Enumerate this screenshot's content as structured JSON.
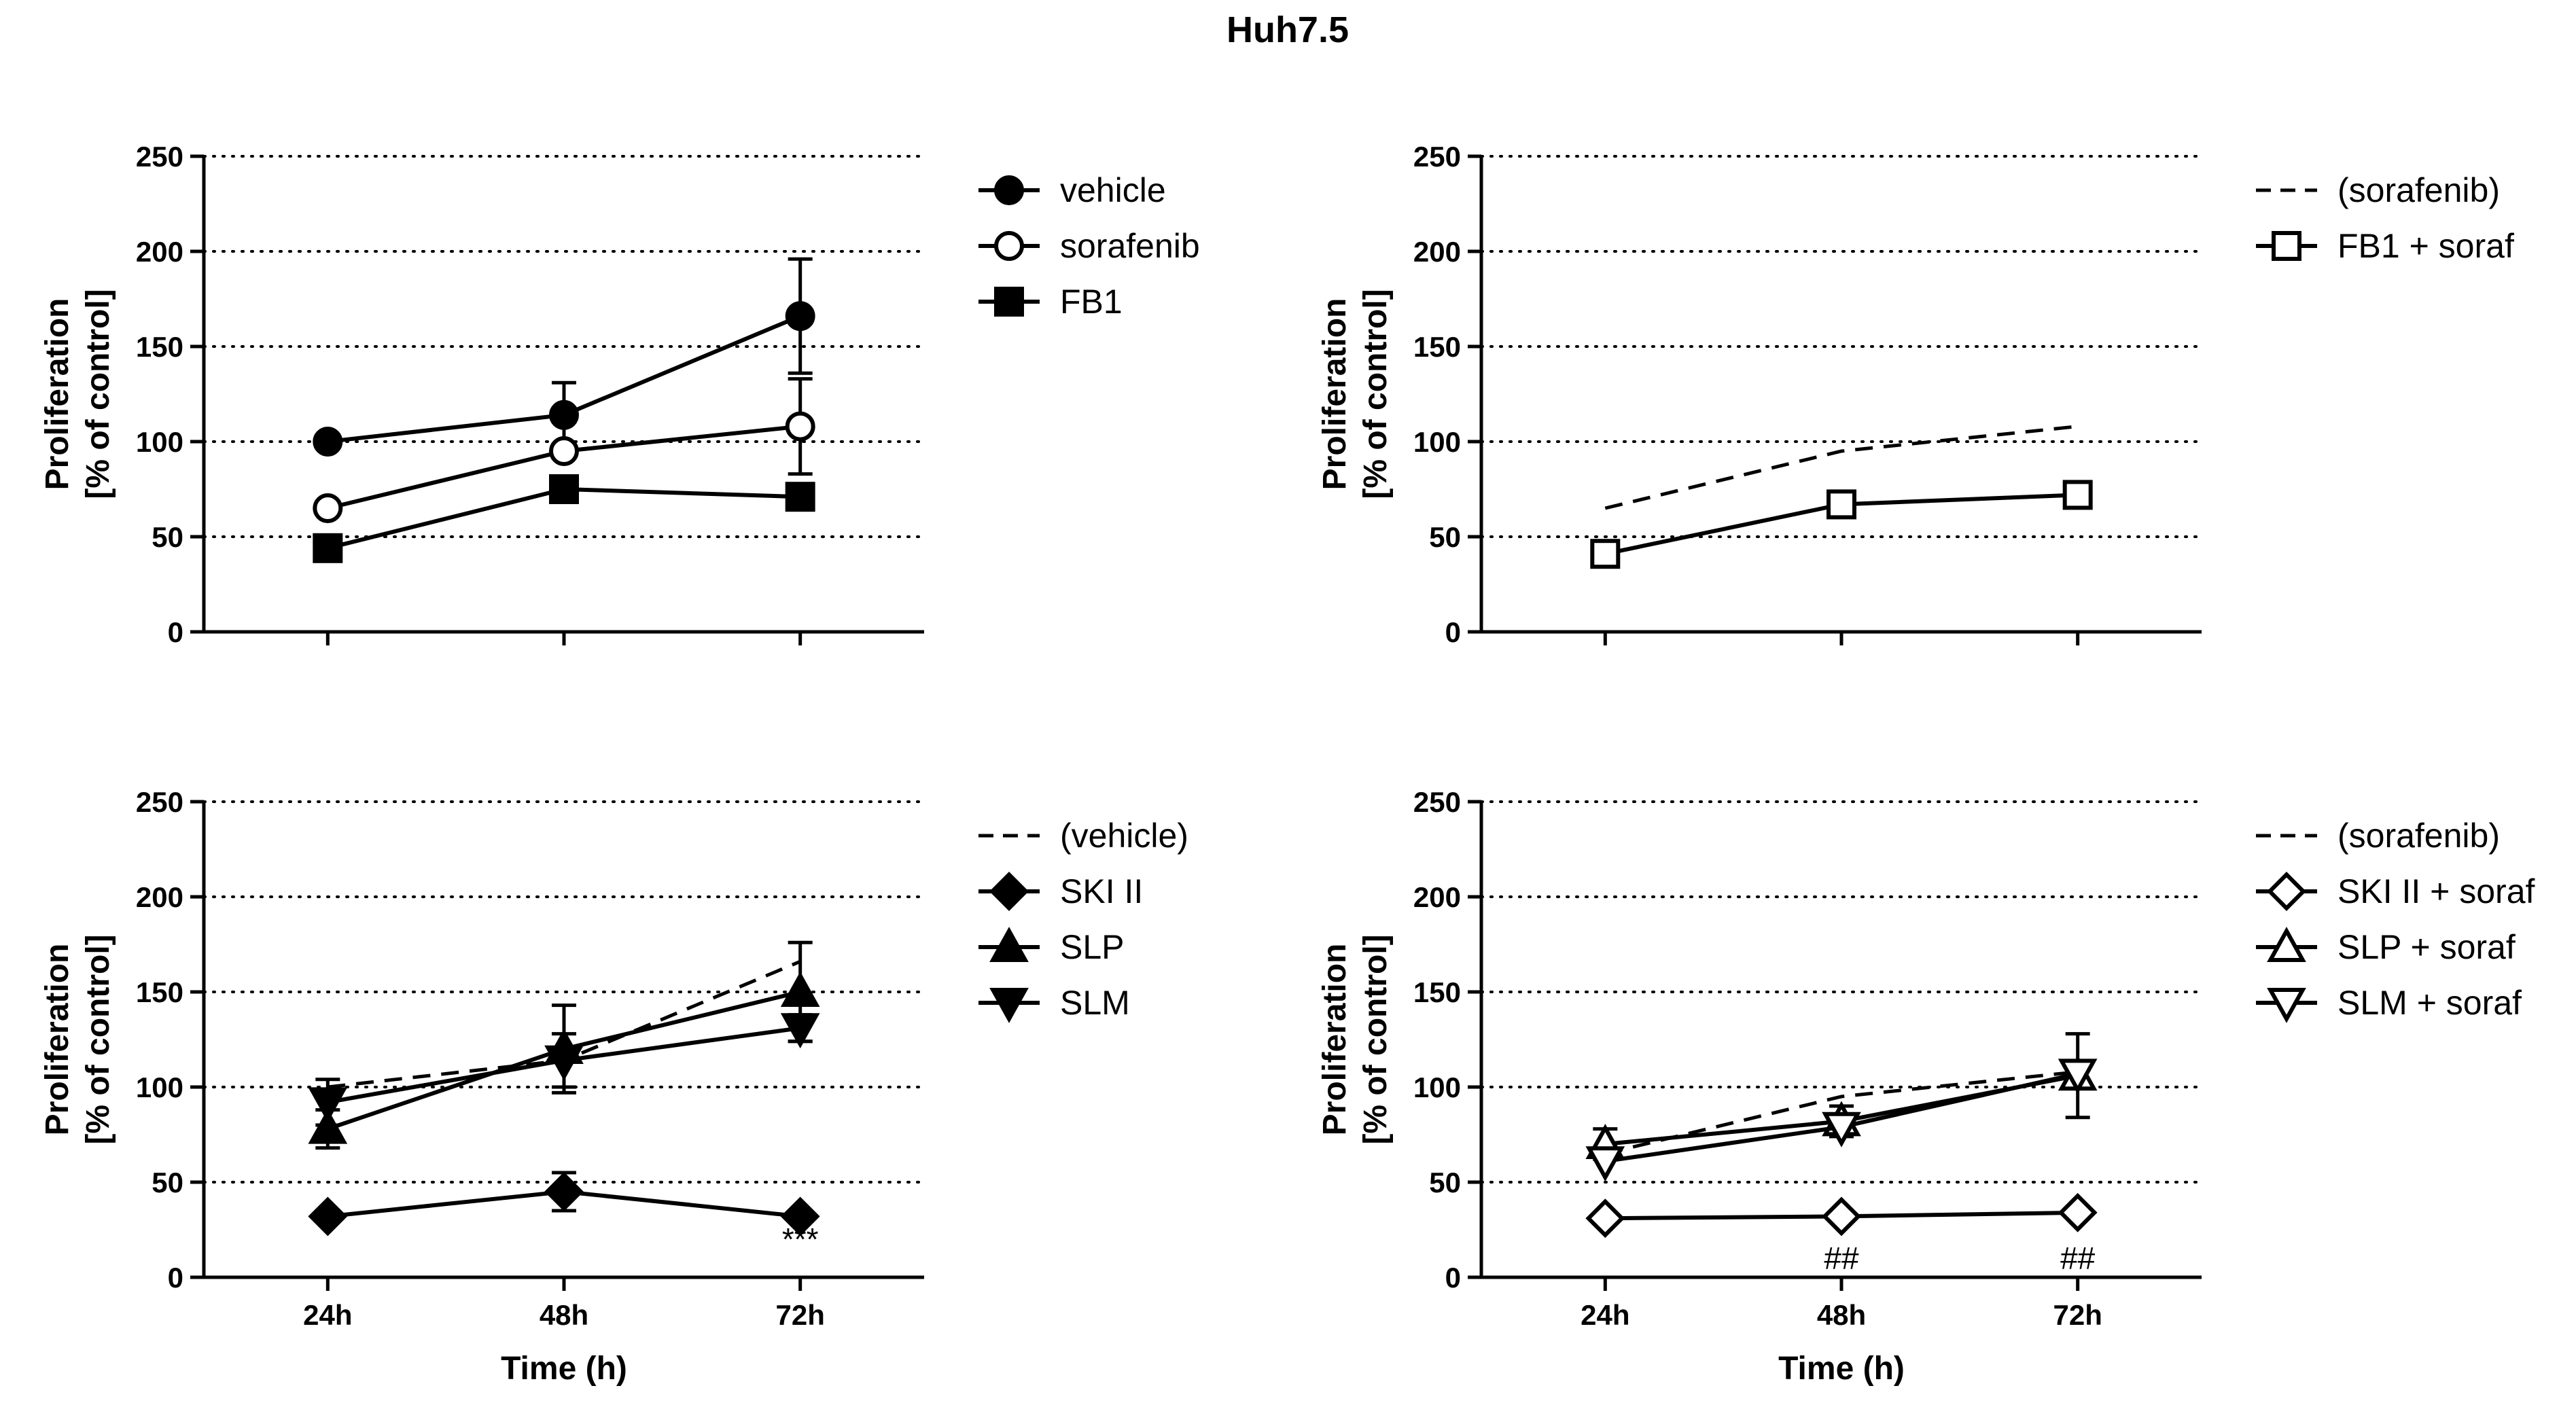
{
  "title": "Huh7.5",
  "colors": {
    "ink": "#000000",
    "background": "#ffffff"
  },
  "chart_data": [
    {
      "type": "line",
      "panel": "top-left",
      "title": "",
      "xlabel": "",
      "ylabel": [
        "Proliferation",
        "[% of control]"
      ],
      "categories": [
        "24h",
        "48h",
        "72h"
      ],
      "show_x_tick_labels": false,
      "ylim": [
        0,
        250
      ],
      "yticks": [
        0,
        50,
        100,
        150,
        200,
        250
      ],
      "grid": "horizontal-dotted",
      "legend_position": "right",
      "series": [
        {
          "name": "vehicle",
          "marker": "circle-filled",
          "line": "solid",
          "values": [
            100,
            114,
            166
          ],
          "errors": [
            0,
            17,
            30
          ]
        },
        {
          "name": "sorafenib",
          "marker": "circle-open",
          "line": "solid",
          "values": [
            65,
            95,
            108
          ],
          "errors": [
            0,
            0,
            25
          ]
        },
        {
          "name": "FB1",
          "marker": "square-filled",
          "line": "solid",
          "values": [
            44,
            75,
            71
          ],
          "errors": [
            0,
            0,
            0
          ]
        }
      ],
      "annotations": []
    },
    {
      "type": "line",
      "panel": "top-right",
      "title": "",
      "xlabel": "",
      "ylabel": [
        "Proliferation",
        "[% of control]"
      ],
      "categories": [
        "24h",
        "48h",
        "72h"
      ],
      "show_x_tick_labels": false,
      "ylim": [
        0,
        250
      ],
      "yticks": [
        0,
        50,
        100,
        150,
        200,
        250
      ],
      "grid": "horizontal-dotted",
      "legend_position": "right",
      "series": [
        {
          "name": "(sorafenib)",
          "marker": "none",
          "line": "dashed",
          "values": [
            65,
            95,
            108
          ],
          "errors": [
            0,
            0,
            0
          ]
        },
        {
          "name": "FB1 + soraf",
          "marker": "square-open",
          "line": "solid",
          "values": [
            41,
            67,
            72
          ],
          "errors": [
            0,
            0,
            0
          ]
        }
      ],
      "annotations": []
    },
    {
      "type": "line",
      "panel": "bottom-left",
      "title": "",
      "xlabel": "Time (h)",
      "ylabel": [
        "Proliferation",
        "[% of control]"
      ],
      "categories": [
        "24h",
        "48h",
        "72h"
      ],
      "show_x_tick_labels": true,
      "ylim": [
        0,
        250
      ],
      "yticks": [
        0,
        50,
        100,
        150,
        200,
        250
      ],
      "grid": "horizontal-dotted",
      "legend_position": "right",
      "series": [
        {
          "name": "(vehicle)",
          "marker": "none",
          "line": "dashed",
          "values": [
            100,
            114,
            166
          ],
          "errors": [
            0,
            0,
            0
          ]
        },
        {
          "name": "SKI II",
          "marker": "diamond-filled",
          "line": "solid",
          "values": [
            32,
            45,
            32
          ],
          "errors": [
            0,
            10,
            0
          ]
        },
        {
          "name": "SLP",
          "marker": "triangle-up-filled",
          "line": "solid",
          "values": [
            78,
            120,
            150
          ],
          "errors": [
            10,
            23,
            26
          ]
        },
        {
          "name": "SLM",
          "marker": "triangle-down-filled",
          "line": "solid",
          "values": [
            92,
            114,
            131
          ],
          "errors": [
            12,
            14,
            7
          ]
        }
      ],
      "annotations": [
        {
          "text": "***",
          "category": "72h",
          "y": 20
        }
      ]
    },
    {
      "type": "line",
      "panel": "bottom-right",
      "title": "",
      "xlabel": "Time (h)",
      "ylabel": [
        "Proliferation",
        "[% of control]"
      ],
      "categories": [
        "24h",
        "48h",
        "72h"
      ],
      "show_x_tick_labels": true,
      "ylim": [
        0,
        250
      ],
      "yticks": [
        0,
        50,
        100,
        150,
        200,
        250
      ],
      "grid": "horizontal-dotted",
      "legend_position": "right",
      "series": [
        {
          "name": "(sorafenib)",
          "marker": "none",
          "line": "dashed",
          "values": [
            65,
            95,
            108
          ],
          "errors": [
            0,
            0,
            0
          ]
        },
        {
          "name": "SKI II + soraf",
          "marker": "diamond-open",
          "line": "solid",
          "values": [
            31,
            32,
            34
          ],
          "errors": [
            0,
            0,
            0
          ]
        },
        {
          "name": "SLP + soraf",
          "marker": "triangle-up-open",
          "line": "solid",
          "values": [
            70,
            82,
            106
          ],
          "errors": [
            8,
            8,
            22
          ]
        },
        {
          "name": "SLM + soraf",
          "marker": "triangle-down-open",
          "line": "solid",
          "values": [
            61,
            79,
            107
          ],
          "errors": [
            0,
            5,
            0
          ]
        }
      ],
      "annotations": [
        {
          "text": "##",
          "category": "48h",
          "y": 10
        },
        {
          "text": "##",
          "category": "72h",
          "y": 10
        }
      ]
    }
  ]
}
